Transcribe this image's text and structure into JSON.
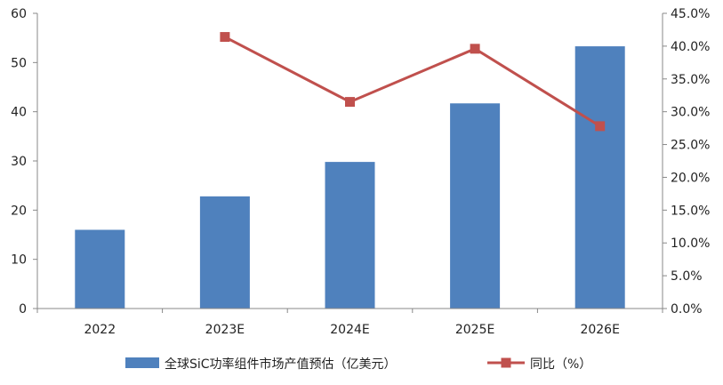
{
  "chart_data": {
    "type": "bar+line",
    "categories": [
      "2022",
      "2023E",
      "2024E",
      "2025E",
      "2026E"
    ],
    "series": [
      {
        "name": "全球SiC功率组件市场产值预估（亿美元）",
        "type": "bar",
        "axis": "left",
        "color": "#4F81BD",
        "values": [
          16.0,
          22.8,
          29.8,
          41.7,
          53.3
        ]
      },
      {
        "name": "同比（%）",
        "type": "line",
        "axis": "right",
        "color": "#C0504D",
        "marker": "square",
        "values": [
          null,
          41.4,
          31.5,
          39.6,
          27.8
        ]
      }
    ],
    "y_left": {
      "min": 0,
      "max": 60,
      "ticks": [
        "0",
        "10",
        "20",
        "30",
        "40",
        "50",
        "60"
      ]
    },
    "y_right": {
      "min": 0,
      "max": 45,
      "ticks": [
        "0.0%",
        "5.0%",
        "10.0%",
        "15.0%",
        "20.0%",
        "25.0%",
        "30.0%",
        "35.0%",
        "40.0%",
        "45.0%"
      ]
    },
    "grid": false,
    "legend_position": "bottom"
  }
}
